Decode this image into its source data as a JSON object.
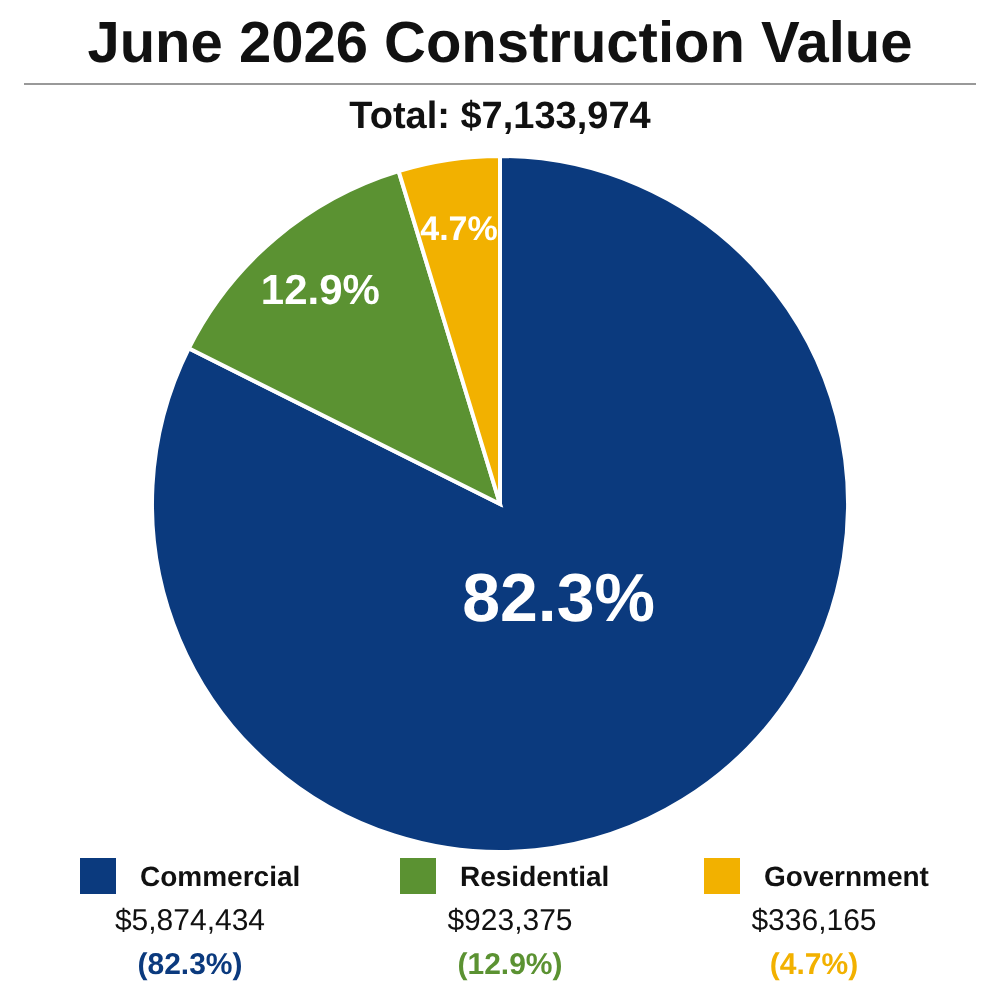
{
  "chart_data": {
    "type": "pie",
    "title": "June 2026 Construction Value",
    "subtitle": "Total: $7,133,974",
    "categories": [
      "Commercial",
      "Residential",
      "Government"
    ],
    "values": [
      82.3,
      12.9,
      4.7
    ],
    "colors": [
      "#0b3a7e",
      "#5b9232",
      "#f2b100"
    ],
    "value_labels": [
      "82.3%",
      "12.9%",
      "4.7%"
    ],
    "annotations": [
      {
        "text": "$5,874,434",
        "x": "Commercial"
      },
      {
        "text": "$923,375",
        "x": "Residential"
      },
      {
        "text": "$336,165",
        "x": "Government"
      },
      {
        "text": "(82.3%)",
        "x": "Commercial"
      },
      {
        "text": "(12.9%)",
        "x": "Residential"
      },
      {
        "text": "(4.7%)",
        "x": "Government"
      }
    ],
    "legend": "bottom"
  }
}
